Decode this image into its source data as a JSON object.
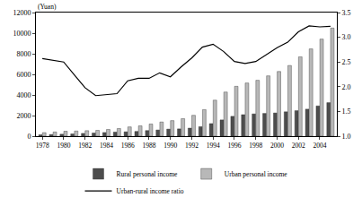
{
  "chart_data": {
    "type": "bar",
    "ylabel": "(Yuan)",
    "categories": [
      "1978",
      null,
      "1980",
      null,
      "1982",
      null,
      "1984",
      null,
      "1986",
      null,
      "1988",
      null,
      "1990",
      null,
      "1992",
      null,
      "1994",
      null,
      "1996",
      null,
      "1998",
      null,
      "2000",
      null,
      "2002",
      null,
      "2004",
      null
    ],
    "series": [
      {
        "name": "Rural personal income",
        "type": "bar",
        "color": "#4d4d4d",
        "values": [
          134,
          160,
          191,
          223,
          270,
          310,
          355,
          398,
          424,
          463,
          545,
          602,
          686,
          709,
          784,
          922,
          1221,
          1578,
          1926,
          2090,
          2162,
          2210,
          2253,
          2366,
          2476,
          2622,
          2936,
          3255
        ]
      },
      {
        "name": "Urban personal income",
        "type": "bar",
        "color": "#b8b8b8",
        "values": [
          343,
          405,
          478,
          500,
          535,
          565,
          652,
          739,
          900,
          1002,
          1180,
          1374,
          1510,
          1701,
          2027,
          2577,
          3496,
          4283,
          4839,
          5160,
          5425,
          5854,
          6280,
          6860,
          7703,
          8472,
          9422,
          10493
        ]
      },
      {
        "name": "Urban-rural income ratio",
        "type": "line",
        "axis": "y2",
        "color": "#000000",
        "values": [
          2.57,
          2.53,
          2.5,
          2.24,
          1.98,
          1.82,
          1.84,
          1.86,
          2.12,
          2.17,
          2.17,
          2.28,
          2.2,
          2.4,
          2.58,
          2.8,
          2.86,
          2.71,
          2.51,
          2.47,
          2.51,
          2.65,
          2.79,
          2.9,
          3.11,
          3.23,
          3.21,
          3.22
        ]
      }
    ],
    "ylim": [
      0,
      12000
    ],
    "yticks": [
      0,
      2000,
      4000,
      6000,
      8000,
      10000,
      12000
    ],
    "y2lim": [
      1,
      3.5
    ],
    "y2ticks": [
      {
        "value": 1,
        "label": "1.0"
      },
      {
        "value": 1.5,
        "label": "1.5"
      },
      {
        "value": 2,
        "label": "2.0"
      },
      {
        "value": 2.5,
        "label": "2.5"
      },
      {
        "value": 3,
        "label": "3.0"
      },
      {
        "value": 3.5,
        "label": "3.5"
      }
    ],
    "grid": false,
    "legend": "bottom"
  }
}
